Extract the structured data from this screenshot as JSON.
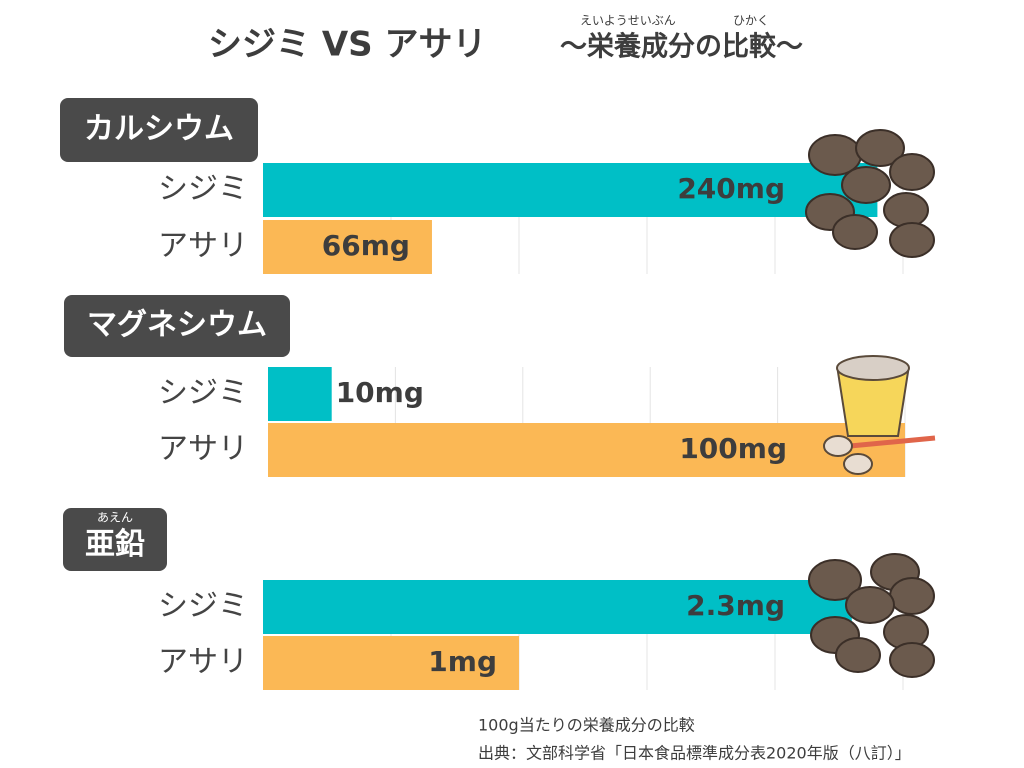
{
  "header": {
    "title": "シジミ VS アサリ",
    "subtitle": "〜栄養成分の比較〜",
    "ruby_1": "えいようせいぶん",
    "ruby_2": "ひかく"
  },
  "chart_data": [
    {
      "type": "bar",
      "orientation": "horizontal",
      "title": "カルシウム",
      "categories": [
        "シジミ",
        "アサリ"
      ],
      "values": [
        240,
        66
      ],
      "value_labels": [
        "240mg",
        "66mg"
      ],
      "colors": [
        "#00bfc6",
        "#fbb855"
      ],
      "xlim": [
        0,
        250
      ]
    },
    {
      "type": "bar",
      "orientation": "horizontal",
      "title": "マグネシウム",
      "categories": [
        "シジミ",
        "アサリ"
      ],
      "values": [
        10,
        100
      ],
      "value_labels": [
        "10mg",
        "100mg"
      ],
      "colors": [
        "#00bfc6",
        "#fbb855"
      ],
      "xlim": [
        0,
        100
      ]
    },
    {
      "type": "bar",
      "orientation": "horizontal",
      "title": "亜鉛",
      "title_ruby": "あえん",
      "categories": [
        "シジミ",
        "アサリ"
      ],
      "values": [
        2.3,
        1
      ],
      "value_labels": [
        "2.3mg",
        "1mg"
      ],
      "colors": [
        "#00bfc6",
        "#fbb855"
      ],
      "xlim": [
        0,
        2.5
      ]
    }
  ],
  "footer": {
    "note": "100g当たりの栄養成分の比較",
    "source": "出典：文部科学省「日本食品標準成分表2020年版（八訂）」"
  }
}
